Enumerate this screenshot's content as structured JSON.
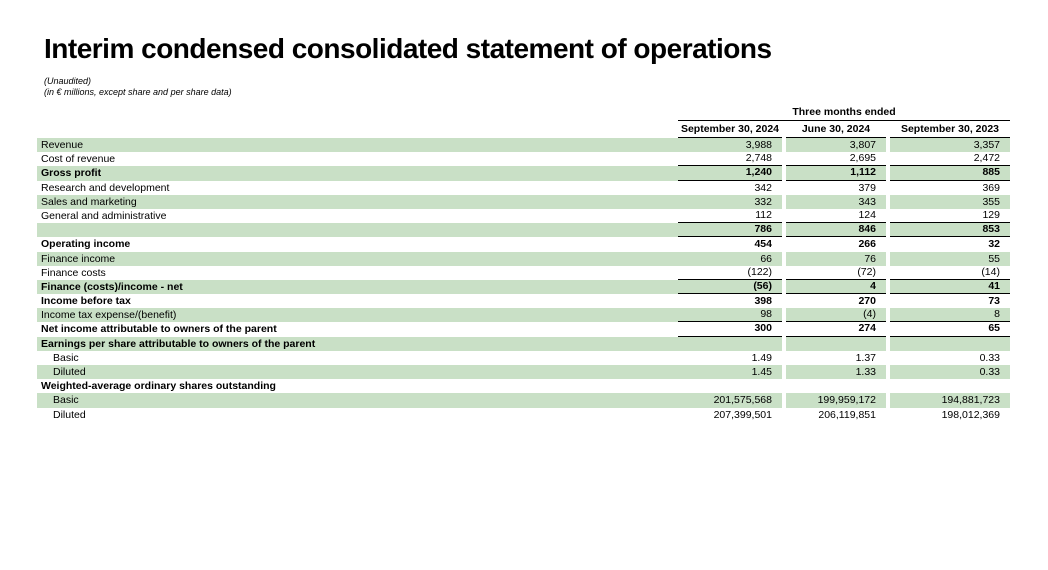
{
  "title": "Interim condensed consolidated statement of operations",
  "subtitle_line1": "(Unaudited)",
  "subtitle_line2": "(in € millions, except share and per share data)",
  "colors": {
    "row_shade": "#c9e0c6",
    "rule": "#000000"
  },
  "table": {
    "group_header": "Three months ended",
    "columns": [
      "September 30, 2024",
      "June 30, 2024",
      "September 30, 2023"
    ],
    "rows": [
      {
        "label": "Revenue",
        "values": [
          "3,988",
          "3,807",
          "3,357"
        ],
        "shaded": true,
        "bold": false,
        "rule": false,
        "indent": false
      },
      {
        "label": "Cost of revenue",
        "values": [
          "2,748",
          "2,695",
          "2,472"
        ],
        "shaded": false,
        "bold": false,
        "rule": true,
        "indent": false
      },
      {
        "label": "Gross profit",
        "values": [
          "1,240",
          "1,112",
          "885"
        ],
        "shaded": true,
        "bold": true,
        "rule": true,
        "indent": false
      },
      {
        "label": "Research and development",
        "values": [
          "342",
          "379",
          "369"
        ],
        "shaded": false,
        "bold": false,
        "rule": false,
        "indent": false
      },
      {
        "label": "Sales and marketing",
        "values": [
          "332",
          "343",
          "355"
        ],
        "shaded": true,
        "bold": false,
        "rule": false,
        "indent": false
      },
      {
        "label": "General and administrative",
        "values": [
          "112",
          "124",
          "129"
        ],
        "shaded": false,
        "bold": false,
        "rule": true,
        "indent": false
      },
      {
        "label": "",
        "values": [
          "786",
          "846",
          "853"
        ],
        "shaded": true,
        "bold": true,
        "rule": true,
        "indent": false
      },
      {
        "label": "Operating income",
        "values": [
          "454",
          "266",
          "32"
        ],
        "shaded": false,
        "bold": true,
        "rule": false,
        "indent": false
      },
      {
        "label": "Finance income",
        "values": [
          "66",
          "76",
          "55"
        ],
        "shaded": true,
        "bold": false,
        "rule": false,
        "indent": false
      },
      {
        "label": "Finance costs",
        "values": [
          "(122)",
          "(72)",
          "(14)"
        ],
        "shaded": false,
        "bold": false,
        "rule": true,
        "indent": false
      },
      {
        "label": "Finance (costs)/income - net",
        "values": [
          "(56)",
          "4",
          "41"
        ],
        "shaded": true,
        "bold": true,
        "rule": true,
        "indent": false
      },
      {
        "label": "Income before tax",
        "values": [
          "398",
          "270",
          "73"
        ],
        "shaded": false,
        "bold": true,
        "rule": false,
        "indent": false
      },
      {
        "label": "Income tax expense/(benefit)",
        "values": [
          "98",
          "(4)",
          "8"
        ],
        "shaded": true,
        "bold": false,
        "rule": true,
        "indent": false
      },
      {
        "label": "Net income attributable to owners of the parent",
        "values": [
          "300",
          "274",
          "65"
        ],
        "shaded": false,
        "bold": true,
        "rule": true,
        "indent": false
      },
      {
        "label": "Earnings per share attributable to owners of the parent",
        "values": [
          "",
          "",
          ""
        ],
        "shaded": true,
        "bold": true,
        "rule": false,
        "indent": false
      },
      {
        "label": "Basic",
        "values": [
          "1.49",
          "1.37",
          "0.33"
        ],
        "shaded": false,
        "bold": false,
        "rule": false,
        "indent": true
      },
      {
        "label": "Diluted",
        "values": [
          "1.45",
          "1.33",
          "0.33"
        ],
        "shaded": true,
        "bold": false,
        "rule": false,
        "indent": true
      },
      {
        "label": "Weighted-average ordinary shares outstanding",
        "values": [
          "",
          "",
          ""
        ],
        "shaded": false,
        "bold": true,
        "rule": false,
        "indent": false
      },
      {
        "label": "Basic",
        "values": [
          "201,575,568",
          "199,959,172",
          "194,881,723"
        ],
        "shaded": true,
        "bold": false,
        "rule": false,
        "indent": true
      },
      {
        "label": "Diluted",
        "values": [
          "207,399,501",
          "206,119,851",
          "198,012,369"
        ],
        "shaded": false,
        "bold": false,
        "rule": false,
        "indent": true
      }
    ]
  }
}
